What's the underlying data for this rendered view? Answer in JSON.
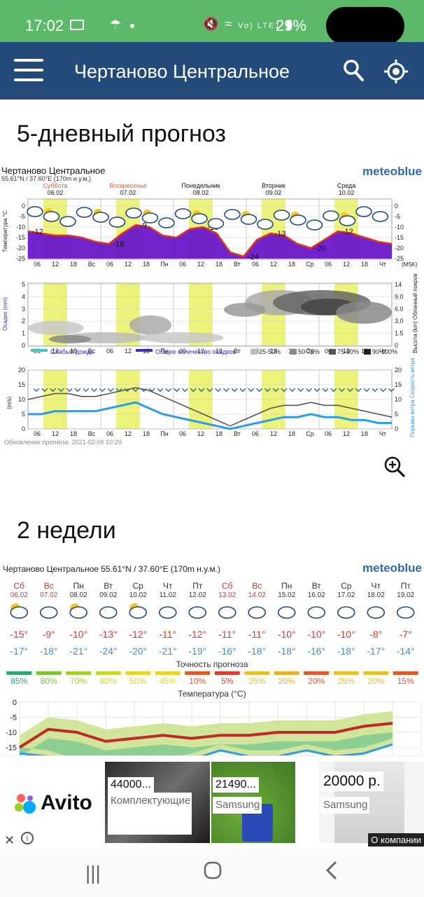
{
  "status": {
    "time": "17:02",
    "battery": "29%",
    "signal": "Vo) LTE1"
  },
  "appbar": {
    "title": "Чертаново Центральное"
  },
  "section1": {
    "title": "5-дневный прогноз"
  },
  "section2": {
    "title": "2 недели"
  },
  "meteogram": {
    "location": "Чертаново Центральное",
    "coords": "55.61°N / 37.60°E (170m н.у.м.)",
    "brand": "meteoblue",
    "days": [
      {
        "name": "Суббота",
        "date": "06.02",
        "weekend": true
      },
      {
        "name": "Воскресенье",
        "date": "07.02",
        "weekend": true
      },
      {
        "name": "Понедельник",
        "date": "08.02",
        "weekend": false
      },
      {
        "name": "Вторник",
        "date": "09.02",
        "weekend": false
      },
      {
        "name": "Среда",
        "date": "10.02",
        "weekend": false
      }
    ],
    "time_ticks": [
      "06",
      "12",
      "18",
      "Вс",
      "06",
      "12",
      "18",
      "Пн",
      "06",
      "12",
      "18",
      "Вт",
      "06",
      "12",
      "18",
      "Ср",
      "06",
      "12",
      "18",
      "Чт"
    ],
    "tz": "(MSK)",
    "temp_axis_label": "Температура °C",
    "temp_ticks": [
      "0",
      "-5",
      "-10",
      "-15",
      "-20",
      "-25"
    ],
    "temp_labels": [
      "-12",
      "-18",
      "-9",
      "-10",
      "-24",
      "-13",
      "-20",
      "-12"
    ],
    "precip_axis_label": "Осадки (mm)",
    "precip_ticks": [
      "5",
      "4",
      "3",
      "2",
      "1",
      "0"
    ],
    "cloud_axis_label": "Высота (km) Облачный покров",
    "cloud_ticks": [
      "14",
      "9.0",
      "6.0",
      "3.0",
      "1.5",
      "0"
    ],
    "legend": [
      "Слабый дождь",
      "Общее количество осадков",
      "25-50%",
      "50-75%",
      "75-90%",
      "90-100%"
    ],
    "wind_axis_label": "(m/s)",
    "wind_ticks": [
      "20",
      "15",
      "10",
      "5",
      "0"
    ],
    "wind_right_label": "Порывы ветра Скорость ветра",
    "updated": "Обновление прогноза: 2021-02-06 10:20",
    "colors": {
      "weekend": "#e65c2e",
      "highlight": "#ecf27a",
      "temp_fill": "#6a17c9",
      "wind": "#2c9be8"
    }
  },
  "two_weeks": {
    "header": "Чертаново Центральное  55.61°N / 37.60°E (170m н.у.м.)",
    "brand": "meteoblue",
    "days": [
      {
        "d": "Сб",
        "date": "06.02",
        "hi": "-15°",
        "lo": "-17°",
        "acc": "85%",
        "w": true,
        "accColor": "#2ea86b"
      },
      {
        "d": "Вс",
        "date": "07.02",
        "hi": "-9°",
        "lo": "-18°",
        "acc": "80%",
        "w": true,
        "accColor": "#79c534"
      },
      {
        "d": "Пн",
        "date": "08.02",
        "hi": "-10°",
        "lo": "-21°",
        "acc": "70%",
        "w": false,
        "accColor": "#a3cf2a"
      },
      {
        "d": "Вт",
        "date": "09.02",
        "hi": "-13°",
        "lo": "-24°",
        "acc": "60%",
        "w": false,
        "accColor": "#c8d62a"
      },
      {
        "d": "Ср",
        "date": "10.02",
        "hi": "-12°",
        "lo": "-20°",
        "acc": "50%",
        "w": false,
        "accColor": "#e8d62a"
      },
      {
        "d": "Чт",
        "date": "11.02",
        "hi": "-11°",
        "lo": "-21°",
        "acc": "45%",
        "w": false,
        "accColor": "#eed22a"
      },
      {
        "d": "Пт",
        "date": "12.02",
        "hi": "-12°",
        "lo": "-19°",
        "acc": "10%",
        "w": false,
        "accColor": "#e05a2a"
      },
      {
        "d": "Сб",
        "date": "13.02",
        "hi": "-11°",
        "lo": "-16°",
        "acc": "5%",
        "w": true,
        "accColor": "#e23a2a"
      },
      {
        "d": "Вс",
        "date": "14.02",
        "hi": "-11°",
        "lo": "-18°",
        "acc": "25%",
        "w": true,
        "accColor": "#e8c02a"
      },
      {
        "d": "Пн",
        "date": "15.02",
        "hi": "-10°",
        "lo": "-18°",
        "acc": "20%",
        "w": false,
        "accColor": "#e8b02a"
      },
      {
        "d": "Вт",
        "date": "16.02",
        "hi": "-10°",
        "lo": "-16°",
        "acc": "20%",
        "w": false,
        "accColor": "#e05a2a"
      },
      {
        "d": "Ср",
        "date": "17.02",
        "hi": "-10°",
        "lo": "-18°",
        "acc": "25%",
        "w": false,
        "accColor": "#e8c02a"
      },
      {
        "d": "Чт",
        "date": "18.02",
        "hi": "-8°",
        "lo": "-17°",
        "acc": "20%",
        "w": false,
        "accColor": "#e8c02a"
      },
      {
        "d": "Пт",
        "date": "19.02",
        "hi": "-7°",
        "lo": "-14°",
        "acc": "15%",
        "w": false,
        "accColor": "#e05a2a"
      }
    ],
    "accuracy_title": "Точность прогноза",
    "temp_title": "Температура (°C)",
    "temp_ticks": [
      "0",
      "-5",
      "-10",
      "-15"
    ]
  },
  "ad": {
    "brand": "Avito",
    "items": [
      {
        "price": "44000...",
        "subtitle": "Комплектующие"
      },
      {
        "price": "21490...",
        "subtitle": "Samsung"
      },
      {
        "price": "20000 р.",
        "subtitle": "Samsung"
      }
    ],
    "company": "О компании"
  }
}
